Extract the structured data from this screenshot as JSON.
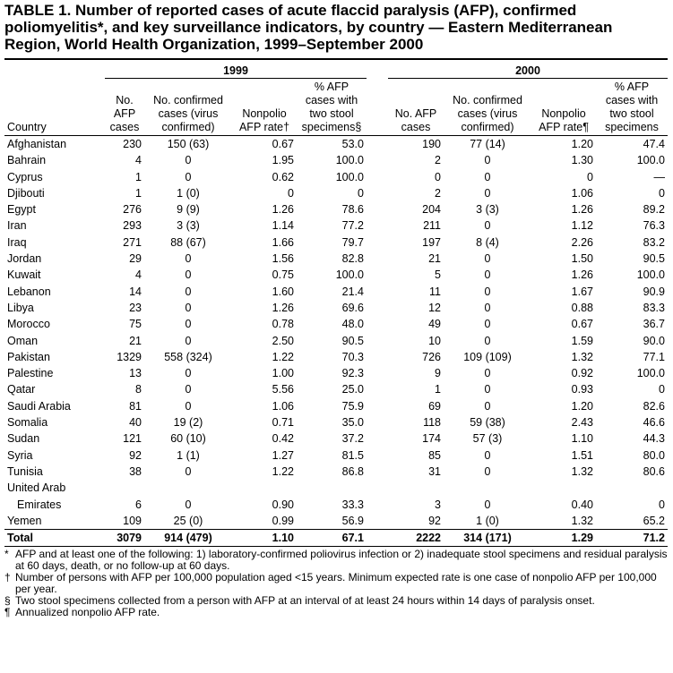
{
  "header": {
    "title": "TABLE 1. Number of reported cases of acute flaccid paralysis (AFP), confirmed poliomyelitis*, and key surveillance indicators, by country — Eastern Mediterranean Region, World Health Organization, 1999–September 2000"
  },
  "table": {
    "groups": [
      "1999",
      "2000"
    ],
    "columns": [
      "Country",
      "No. AFP cases",
      "No. confirmed cases (virus confirmed)",
      "Nonpolio AFP rate†",
      "% AFP cases with two stool specimens§",
      "No. AFP cases",
      "No. confirmed cases (virus confirmed)",
      "Nonpolio AFP rate¶",
      "% AFP cases with two stool specimens"
    ],
    "rows": [
      [
        "Afghanistan",
        "230",
        "150 (63)",
        "0.67",
        "53.0",
        "190",
        "77 (14)",
        "1.20",
        "47.4"
      ],
      [
        "Bahrain",
        "4",
        "0",
        "1.95",
        "100.0",
        "2",
        "0",
        "1.30",
        "100.0"
      ],
      [
        "Cyprus",
        "1",
        "0",
        "0.62",
        "100.0",
        "0",
        "0",
        "0",
        "—"
      ],
      [
        "Djibouti",
        "1",
        "1 (0)",
        "0",
        "0",
        "2",
        "0",
        "1.06",
        "0"
      ],
      [
        "Egypt",
        "276",
        "9 (9)",
        "1.26",
        "78.6",
        "204",
        "3 (3)",
        "1.26",
        "89.2"
      ],
      [
        "Iran",
        "293",
        "3 (3)",
        "1.14",
        "77.2",
        "211",
        "0",
        "1.12",
        "76.3"
      ],
      [
        "Iraq",
        "271",
        "88 (67)",
        "1.66",
        "79.7",
        "197",
        "8 (4)",
        "2.26",
        "83.2"
      ],
      [
        "Jordan",
        "29",
        "0",
        "1.56",
        "82.8",
        "21",
        "0",
        "1.50",
        "90.5"
      ],
      [
        "Kuwait",
        "4",
        "0",
        "0.75",
        "100.0",
        "5",
        "0",
        "1.26",
        "100.0"
      ],
      [
        "Lebanon",
        "14",
        "0",
        "1.60",
        "21.4",
        "11",
        "0",
        "1.67",
        "90.9"
      ],
      [
        "Libya",
        "23",
        "0",
        "1.26",
        "69.6",
        "12",
        "0",
        "0.88",
        "83.3"
      ],
      [
        "Morocco",
        "75",
        "0",
        "0.78",
        "48.0",
        "49",
        "0",
        "0.67",
        "36.7"
      ],
      [
        "Oman",
        "21",
        "0",
        "2.50",
        "90.5",
        "10",
        "0",
        "1.59",
        "90.0"
      ],
      [
        "Pakistan",
        "1329",
        "558 (324)",
        "1.22",
        "70.3",
        "726",
        "109 (109)",
        "1.32",
        "77.1"
      ],
      [
        "Palestine",
        "13",
        "0",
        "1.00",
        "92.3",
        "9",
        "0",
        "0.92",
        "100.0"
      ],
      [
        "Qatar",
        "8",
        "0",
        "5.56",
        "25.0",
        "1",
        "0",
        "0.93",
        "0"
      ],
      [
        "Saudi Arabia",
        "81",
        "0",
        "1.06",
        "75.9",
        "69",
        "0",
        "1.20",
        "82.6"
      ],
      [
        "Somalia",
        "40",
        "19 (2)",
        "0.71",
        "35.0",
        "118",
        "59 (38)",
        "2.43",
        "46.6"
      ],
      [
        "Sudan",
        "121",
        "60 (10)",
        "0.42",
        "37.2",
        "174",
        "57 (3)",
        "1.10",
        "44.3"
      ],
      [
        "Syria",
        "92",
        "1 (1)",
        "1.27",
        "81.5",
        "85",
        "0",
        "1.51",
        "80.0"
      ],
      [
        "Tunisia",
        "38",
        "0",
        "1.22",
        "86.8",
        "31",
        "0",
        "1.32",
        "80.6"
      ],
      [
        "United Arab Emirates",
        "6",
        "0",
        "0.90",
        "33.3",
        "3",
        "0",
        "0.40",
        "0"
      ],
      [
        "Yemen",
        "109",
        "25 (0)",
        "0.99",
        "56.9",
        "92",
        "1 (0)",
        "1.32",
        "65.2"
      ],
      [
        "Total",
        "3079",
        "914 (479)",
        "1.10",
        "67.1",
        "2222",
        "314 (171)",
        "1.29",
        "71.2"
      ]
    ]
  },
  "footnotes": [
    {
      "mark": "*",
      "text": "AFP and at least one of the following: 1) laboratory-confirmed poliovirus infection or 2) inadequate stool specimens and residual paralysis at 60 days, death, or no follow-up at 60 days."
    },
    {
      "mark": "†",
      "text": "Number of persons with AFP per 100,000 population aged <15 years. Minimum expected rate is one case of nonpolio AFP per 100,000 per year."
    },
    {
      "mark": "§",
      "text": "Two stool specimens collected from a person with AFP at an interval of at least 24 hours within 14 days of paralysis onset."
    },
    {
      "mark": "¶",
      "text": "Annualized nonpolio AFP rate."
    }
  ]
}
